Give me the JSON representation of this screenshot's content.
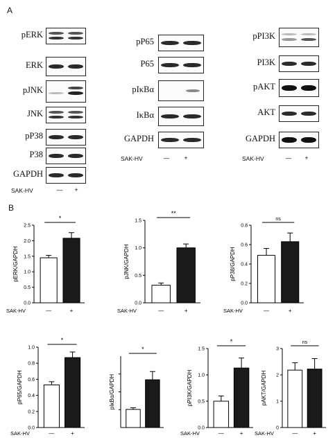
{
  "panel_a": {
    "letter": "A"
  },
  "panel_b": {
    "letter": "B"
  },
  "blot_groups": [
    {
      "labels": [
        "pERK",
        "ERK",
        "pJNK",
        "JNK",
        "pP38",
        "P38",
        "GAPDH"
      ],
      "condition_label": "SAK-HV",
      "minus": "—",
      "plus": "+"
    },
    {
      "labels": [
        "pP65",
        "P65",
        "pIκBα",
        "IκBα",
        "GAPDH"
      ],
      "condition_label": "SAK-HV",
      "minus": "—",
      "plus": "+"
    },
    {
      "labels": [
        "pPI3K",
        "PI3K",
        "pAKT",
        "AKT",
        "GAPDH"
      ],
      "condition_label": "SAK-HV",
      "minus": "—",
      "plus": "+"
    }
  ],
  "chart_data": [
    {
      "type": "bar",
      "ylabel": "pERK/GAPDH",
      "xlabel": "SAK-HV",
      "categories": [
        "—",
        "+"
      ],
      "values": [
        1.45,
        2.08
      ],
      "errors": [
        0.08,
        0.18
      ],
      "yticks": [
        "0.0",
        "0.5",
        "1.0",
        "1.5",
        "2.0",
        "2.5"
      ],
      "ylim": [
        0,
        2.5
      ],
      "significance": "*",
      "bar_colors": [
        "#ffffff",
        "#1a1a1a"
      ]
    },
    {
      "type": "bar",
      "ylabel": "pJNK/GAPDH",
      "xlabel": "SAK-HV",
      "categories": [
        "—",
        "+"
      ],
      "values": [
        0.32,
        1.0
      ],
      "errors": [
        0.04,
        0.07
      ],
      "yticks": [
        "0.0",
        "0.5",
        "1.0",
        "1.5"
      ],
      "ylim": [
        0,
        1.5
      ],
      "significance": "**",
      "bar_colors": [
        "#ffffff",
        "#1a1a1a"
      ]
    },
    {
      "type": "bar",
      "ylabel": "pP38/GAPDH",
      "xlabel": "SAK-HV",
      "categories": [
        "—",
        "+"
      ],
      "values": [
        0.49,
        0.63
      ],
      "errors": [
        0.07,
        0.09
      ],
      "yticks": [
        "0.0",
        "0.2",
        "0.4",
        "0.6",
        "0.8"
      ],
      "ylim": [
        0,
        0.8
      ],
      "significance": "ns",
      "bar_colors": [
        "#ffffff",
        "#1a1a1a"
      ]
    },
    {
      "type": "bar",
      "ylabel": "pP65/GAPDH",
      "xlabel": "SAK-HV",
      "categories": [
        "—",
        "+"
      ],
      "values": [
        0.53,
        0.87
      ],
      "errors": [
        0.04,
        0.07
      ],
      "yticks": [
        "0.0",
        "0.2",
        "0.4",
        "0.6",
        "0.8",
        "1.0"
      ],
      "ylim": [
        0,
        1.0
      ],
      "significance": "*",
      "bar_colors": [
        "#ffffff",
        "#1a1a1a"
      ]
    },
    {
      "type": "bar",
      "ylabel": "pIκBα/GAPDH",
      "xlabel": "",
      "categories": [
        "",
        ""
      ],
      "values": [
        0.33,
        0.87
      ],
      "errors": [
        0.03,
        0.15
      ],
      "yticks": [],
      "ylim": [
        0,
        1.3
      ],
      "significance": "*",
      "bar_colors": [
        "#ffffff",
        "#1a1a1a"
      ]
    },
    {
      "type": "bar",
      "ylabel": "pPI3K/GAPDH",
      "xlabel": "SAK-HV",
      "categories": [
        "—",
        "+"
      ],
      "values": [
        0.5,
        1.13
      ],
      "errors": [
        0.1,
        0.19
      ],
      "yticks": [
        "0.0",
        "0.5",
        "1.0",
        "1.5"
      ],
      "ylim": [
        0,
        1.5
      ],
      "significance": "*",
      "bar_colors": [
        "#ffffff",
        "#1a1a1a"
      ]
    },
    {
      "type": "bar",
      "ylabel": "pAKT/GAPDH",
      "xlabel": "SAK-HV",
      "categories": [
        "—",
        "+"
      ],
      "values": [
        2.18,
        2.22
      ],
      "errors": [
        0.28,
        0.4
      ],
      "yticks": [
        "0",
        "1",
        "2",
        "3"
      ],
      "ylim": [
        0,
        3
      ],
      "significance": "ns",
      "bar_colors": [
        "#ffffff",
        "#1a1a1a"
      ]
    }
  ]
}
